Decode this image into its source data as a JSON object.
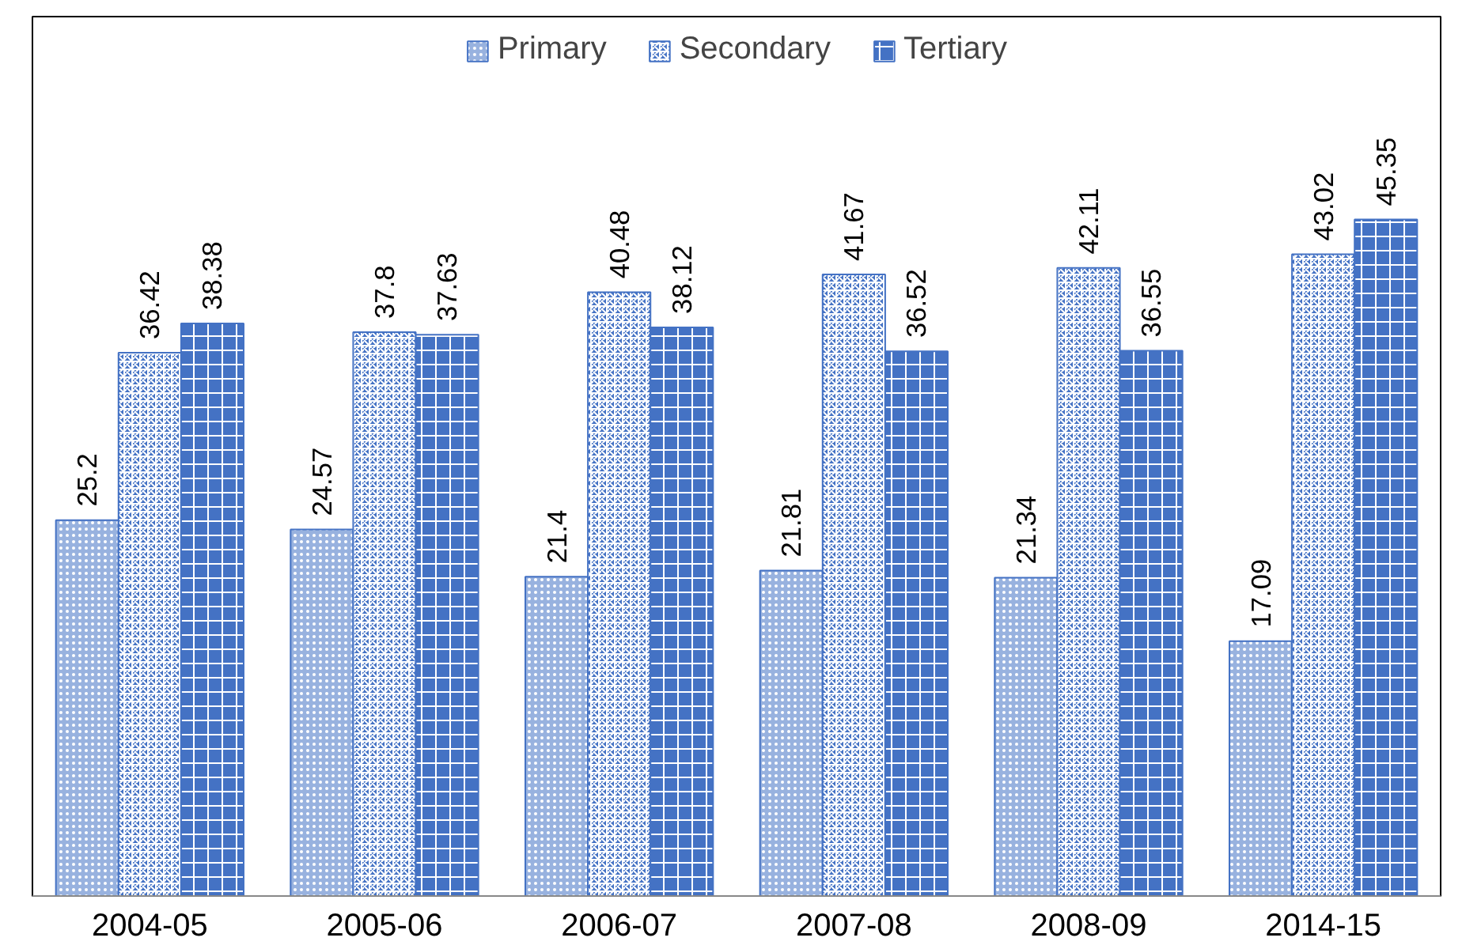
{
  "chart_data": {
    "type": "bar",
    "categories": [
      "2004-05",
      "2005-06",
      "2006-07",
      "2007-08",
      "2008-09",
      "2014-15"
    ],
    "series": [
      {
        "name": "Primary",
        "color": "#4472c4",
        "values": [
          25.2,
          24.57,
          21.4,
          21.81,
          21.34,
          17.09
        ]
      },
      {
        "name": "Secondary",
        "color": "#4472c4",
        "values": [
          36.42,
          37.8,
          40.48,
          41.67,
          42.11,
          43.02
        ]
      },
      {
        "name": "Tertiary",
        "color": "#4472c4",
        "values": [
          38.38,
          37.63,
          38.12,
          36.52,
          36.55,
          45.35
        ]
      }
    ],
    "data_labels": true,
    "legend": "top",
    "grid": false
  }
}
